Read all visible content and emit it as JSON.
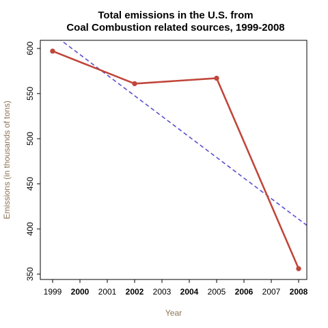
{
  "chart_data": {
    "type": "line",
    "title_line1": "Total emissions in the U.S. from",
    "title_line2": "Coal Combustion related sources, 1999-2008",
    "xlabel": "Year",
    "ylabel": "Emissions (in thousands of tons)",
    "label_color": "#8b7355",
    "xlim": [
      1998.55,
      2008.3
    ],
    "ylim": [
      344,
      609
    ],
    "x_ticks": [
      1999,
      2000,
      2001,
      2002,
      2003,
      2004,
      2005,
      2006,
      2007,
      2008
    ],
    "x_tick_labels": [
      "1999",
      "2000",
      "2001",
      "2002",
      "2003",
      "2004",
      "2005",
      "2006",
      "2007",
      "2008"
    ],
    "x_bold_ticks": [
      "2000",
      "2002",
      "2004",
      "2006",
      "2008"
    ],
    "y_ticks": [
      350,
      400,
      450,
      500,
      550,
      600
    ],
    "y_tick_labels": [
      "350",
      "400",
      "450",
      "500",
      "550",
      "600"
    ],
    "grid": false,
    "series": [
      {
        "x": [
          1999,
          2002,
          2005,
          2008
        ],
        "values": [
          597,
          561,
          567,
          356
        ],
        "color": "#c0463a",
        "style": "solid-with-points"
      }
    ],
    "trendline": {
      "x": [
        1999,
        2008.3
      ],
      "values": [
        616,
        404
      ],
      "color": "#5a4fcf",
      "style": "dashed"
    }
  }
}
